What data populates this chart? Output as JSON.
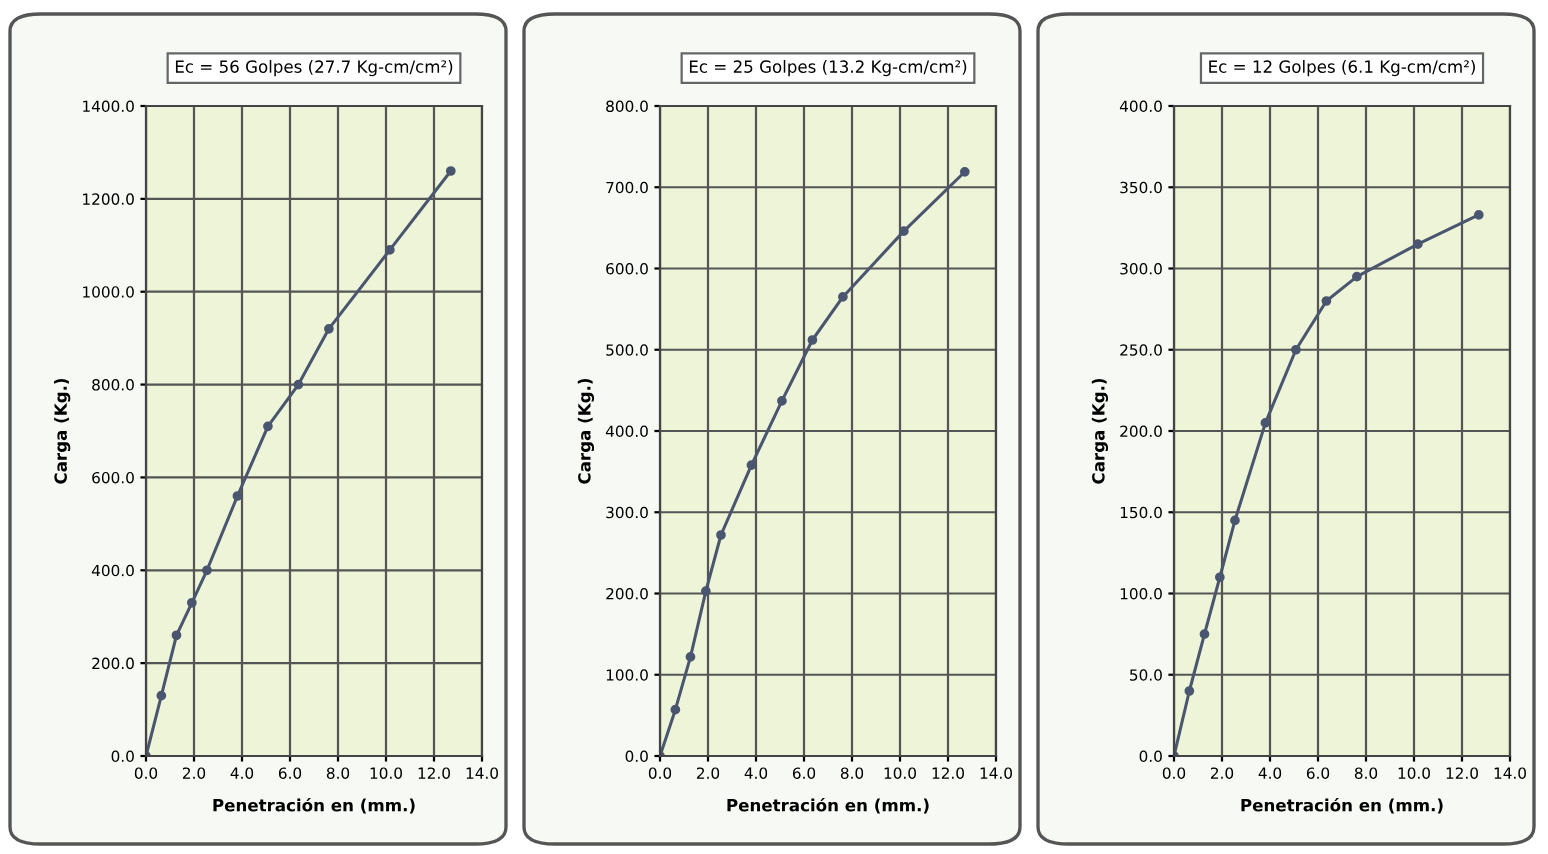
{
  "chart_data": [
    {
      "type": "line",
      "title": "Ec = 56 Golpes (27.7 Kg-cm/cm²)",
      "xlabel": "Penetración en (mm.)",
      "ylabel": "Carga (Kg.)",
      "x": [
        0,
        0.64,
        1.27,
        1.91,
        2.54,
        3.81,
        5.08,
        6.35,
        7.62,
        10.16,
        12.7
      ],
      "series": [
        {
          "color": "#4a5670",
          "values": [
            0,
            130,
            260,
            330,
            400,
            560,
            710,
            800,
            920,
            1090,
            1260
          ]
        }
      ],
      "xlim": [
        0,
        14
      ],
      "xticks": [
        {
          "value": 0,
          "label": "0.0"
        },
        {
          "value": 2,
          "label": "2.0"
        },
        {
          "value": 4,
          "label": "4.0"
        },
        {
          "value": 6,
          "label": "6.0"
        },
        {
          "value": 8,
          "label": "8.0"
        },
        {
          "value": 10,
          "label": "10.0"
        },
        {
          "value": 12,
          "label": "12.0"
        },
        {
          "value": 14,
          "label": "14.0"
        }
      ],
      "ylim": [
        0,
        1400
      ],
      "yticks": [
        {
          "value": 0,
          "label": "0.0"
        },
        {
          "value": 200,
          "label": "200.0"
        },
        {
          "value": 400,
          "label": "400.0"
        },
        {
          "value": 600,
          "label": "600.0"
        },
        {
          "value": 800,
          "label": "800.0"
        },
        {
          "value": 1000,
          "label": "1000.0"
        },
        {
          "value": 1200,
          "label": "1200.0"
        },
        {
          "value": 1400,
          "label": "1400.0"
        }
      ],
      "grid": true,
      "marker": "circle",
      "line_style": "solid",
      "legend": false
    },
    {
      "type": "line",
      "title": "Ec = 25 Golpes (13.2 Kg-cm/cm²)",
      "xlabel": "Penetración en (mm.)",
      "ylabel": "Carga (Kg.)",
      "x": [
        0,
        0.64,
        1.27,
        1.91,
        2.54,
        3.81,
        5.08,
        6.35,
        7.62,
        10.16,
        12.7
      ],
      "series": [
        {
          "color": "#4a5670",
          "values": [
            0,
            57,
            122,
            203,
            272,
            358,
            437,
            512,
            565,
            646,
            719
          ]
        }
      ],
      "xlim": [
        0,
        14
      ],
      "xticks": [
        {
          "value": 0,
          "label": "0.0"
        },
        {
          "value": 2,
          "label": "2.0"
        },
        {
          "value": 4,
          "label": "4.0"
        },
        {
          "value": 6,
          "label": "6.0"
        },
        {
          "value": 8,
          "label": "8.0"
        },
        {
          "value": 10,
          "label": "10.0"
        },
        {
          "value": 12,
          "label": "12.0"
        },
        {
          "value": 14,
          "label": "14.0"
        }
      ],
      "ylim": [
        0,
        800
      ],
      "yticks": [
        {
          "value": 0,
          "label": "0.0"
        },
        {
          "value": 100,
          "label": "100.0"
        },
        {
          "value": 200,
          "label": "200.0"
        },
        {
          "value": 300,
          "label": "300.0"
        },
        {
          "value": 400,
          "label": "400.0"
        },
        {
          "value": 500,
          "label": "500.0"
        },
        {
          "value": 600,
          "label": "600.0"
        },
        {
          "value": 700,
          "label": "700.0"
        },
        {
          "value": 800,
          "label": "800.0"
        }
      ],
      "grid": true,
      "marker": "circle",
      "line_style": "solid",
      "legend": false
    },
    {
      "type": "line",
      "title": "Ec = 12 Golpes (6.1 Kg-cm/cm²)",
      "xlabel": "Penetración en (mm.)",
      "ylabel": "Carga (Kg.)",
      "x": [
        0,
        0.64,
        1.27,
        1.91,
        2.54,
        3.81,
        5.08,
        6.35,
        7.62,
        10.16,
        12.7
      ],
      "series": [
        {
          "color": "#4a5670",
          "values": [
            0,
            40,
            75,
            110,
            145,
            205,
            250,
            280,
            295,
            315,
            333
          ]
        }
      ],
      "xlim": [
        0,
        14
      ],
      "xticks": [
        {
          "value": 0,
          "label": "0.0"
        },
        {
          "value": 2,
          "label": "2.0"
        },
        {
          "value": 4,
          "label": "4.0"
        },
        {
          "value": 6,
          "label": "6.0"
        },
        {
          "value": 8,
          "label": "8.0"
        },
        {
          "value": 10,
          "label": "10.0"
        },
        {
          "value": 12,
          "label": "12.0"
        },
        {
          "value": 14,
          "label": "14.0"
        }
      ],
      "ylim": [
        0,
        400
      ],
      "yticks": [
        {
          "value": 0,
          "label": "0.0"
        },
        {
          "value": 50,
          "label": "50.0"
        },
        {
          "value": 100,
          "label": "100.0"
        },
        {
          "value": 150,
          "label": "150.0"
        },
        {
          "value": 200,
          "label": "200.0"
        },
        {
          "value": 250,
          "label": "250.0"
        },
        {
          "value": 300,
          "label": "300.0"
        },
        {
          "value": 350,
          "label": "350.0"
        },
        {
          "value": 400,
          "label": "400.0"
        }
      ],
      "grid": true,
      "marker": "circle",
      "line_style": "solid",
      "legend": false
    }
  ]
}
